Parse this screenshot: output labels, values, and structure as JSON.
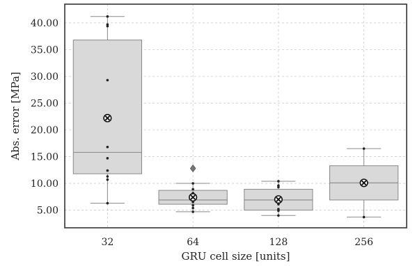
{
  "chart_data": {
    "type": "box",
    "xlabel": "GRU cell size [units]",
    "ylabel": "Abs. error [MPa]",
    "ylim": [
      1.7,
      43.5
    ],
    "y_ticks": [
      "5.00",
      "10.00",
      "15.00",
      "20.00",
      "25.00",
      "30.00",
      "35.00",
      "40.00"
    ],
    "categories": [
      "32",
      "64",
      "128",
      "256"
    ],
    "grid": true,
    "colors": {
      "box": "#d9d9d9",
      "edge": "#888888",
      "frame": "#333333",
      "grid": "#cccccc",
      "point": "#222222"
    },
    "boxes": [
      {
        "category": "32",
        "whisker_low": 6.3,
        "q1": 11.8,
        "median": 15.8,
        "q3": 36.8,
        "whisker_high": 41.2,
        "mean": 22.2,
        "outliers": [],
        "points": [
          6.3,
          10.7,
          11.3,
          12.4,
          14.7,
          16.8,
          29.3,
          39.4,
          39.7,
          41.2
        ]
      },
      {
        "category": "64",
        "whisker_low": 4.7,
        "q1": 6.1,
        "median": 6.9,
        "q3": 8.7,
        "whisker_high": 10.0,
        "mean": 7.4,
        "outliers": [
          12.8
        ],
        "points": [
          4.7,
          5.4,
          5.9,
          6.5,
          7.0,
          7.6,
          8.2,
          8.9,
          10.0
        ]
      },
      {
        "category": "128",
        "whisker_low": 4.0,
        "q1": 5.0,
        "median": 6.9,
        "q3": 8.9,
        "whisker_high": 10.4,
        "mean": 7.0,
        "outliers": [],
        "points": [
          4.0,
          4.9,
          5.2,
          6.1,
          7.1,
          9.3,
          9.6,
          10.4
        ]
      },
      {
        "category": "256",
        "whisker_low": 3.7,
        "q1": 6.9,
        "median": 10.1,
        "q3": 13.3,
        "whisker_high": 16.5,
        "mean": 10.1,
        "outliers": [],
        "points": [
          3.7,
          16.5
        ]
      }
    ]
  }
}
